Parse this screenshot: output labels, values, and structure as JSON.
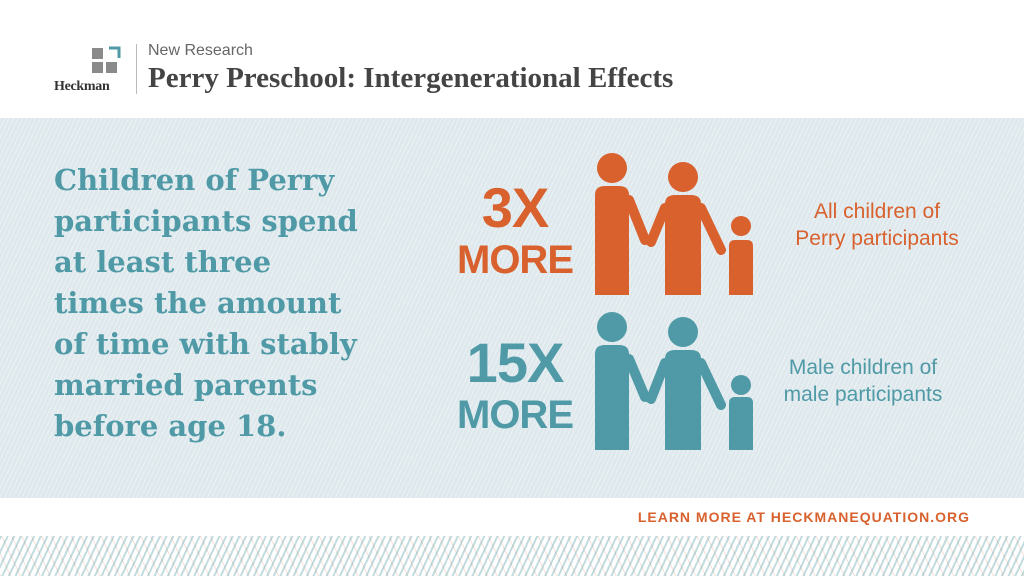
{
  "header": {
    "logo_text": "Heckman",
    "kicker": "New Research",
    "title": "Perry Preschool: Intergenerational Effects"
  },
  "headline": "Children of Perry\nparticipants spend\nat least three\ntimes the amount\nof time with stably\nmarried parents\nbefore age 18.",
  "stats": [
    {
      "value": "3X",
      "more": "MORE",
      "caption": "All children of\nPerry participants",
      "color": "#d8612e"
    },
    {
      "value": "15X",
      "more": "MORE",
      "caption": "Male children of\nmale participants",
      "color": "#4f9aa6"
    }
  ],
  "footer": {
    "learn_more": "LEARN MORE AT HECKMANEQUATION.ORG"
  },
  "colors": {
    "orange": "#d8612e",
    "teal": "#4f9aa6",
    "background": "#dfe9ed"
  },
  "icons": [
    "heckman-logo-icon",
    "family-icon",
    "family-icon"
  ]
}
